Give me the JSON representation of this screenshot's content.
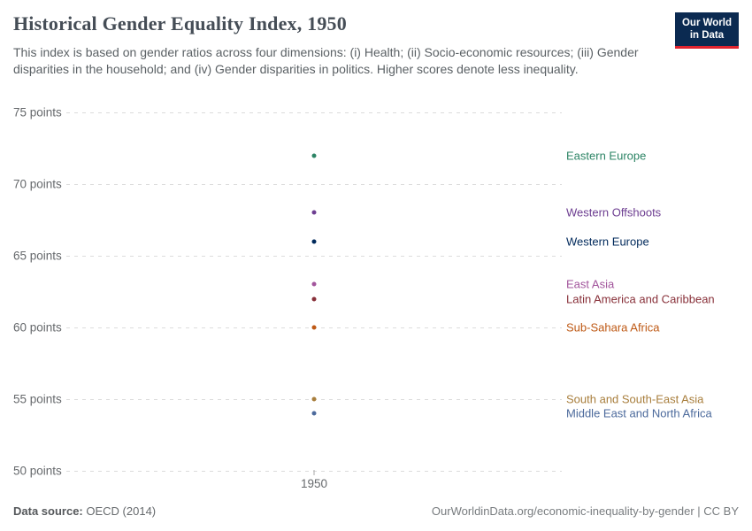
{
  "header": {
    "title": "Historical Gender Equality Index, 1950",
    "subtitle": "This index is based on gender ratios across four dimensions: (i) Health; (ii) Socio-economic resources; (iii) Gender disparities in the household; and (iv) Gender disparities in politics. Higher scores denote less inequality.",
    "logo": {
      "line1": "Our World",
      "line2": "in Data"
    }
  },
  "chart_data": {
    "type": "scatter",
    "title": "Historical Gender Equality Index, 1950",
    "xlabel": "",
    "ylabel": "points",
    "x": [
      1950
    ],
    "x_tick_label": "1950",
    "ylim": [
      50,
      75
    ],
    "y_ticks": [
      {
        "value": 75,
        "label": "75 points"
      },
      {
        "value": 70,
        "label": "70 points"
      },
      {
        "value": 65,
        "label": "65 points"
      },
      {
        "value": 60,
        "label": "60 points"
      },
      {
        "value": 55,
        "label": "55 points"
      },
      {
        "value": 50,
        "label": "50 points"
      }
    ],
    "grid": true,
    "legend_position": "right-of-points",
    "series": [
      {
        "name": "Eastern Europe",
        "value": 72,
        "color": "#2c8465"
      },
      {
        "name": "Western Offshoots",
        "value": 68,
        "color": "#6d3e91"
      },
      {
        "name": "Western Europe",
        "value": 66,
        "color": "#00295b"
      },
      {
        "name": "East Asia",
        "value": 63,
        "color": "#a2559c"
      },
      {
        "name": "Latin America and Caribbean",
        "value": 62,
        "color": "#883039"
      },
      {
        "name": "Sub-Sahara Africa",
        "value": 60,
        "color": "#be5915"
      },
      {
        "name": "South and South-East Asia",
        "value": 55,
        "color": "#a87e3c"
      },
      {
        "name": "Middle East and North Africa",
        "value": 54,
        "color": "#4c6a9c"
      }
    ]
  },
  "footer": {
    "source_label": "Data source:",
    "source_value": "OECD (2014)",
    "credit": "OurWorldinData.org/economic-inequality-by-gender | CC BY"
  }
}
